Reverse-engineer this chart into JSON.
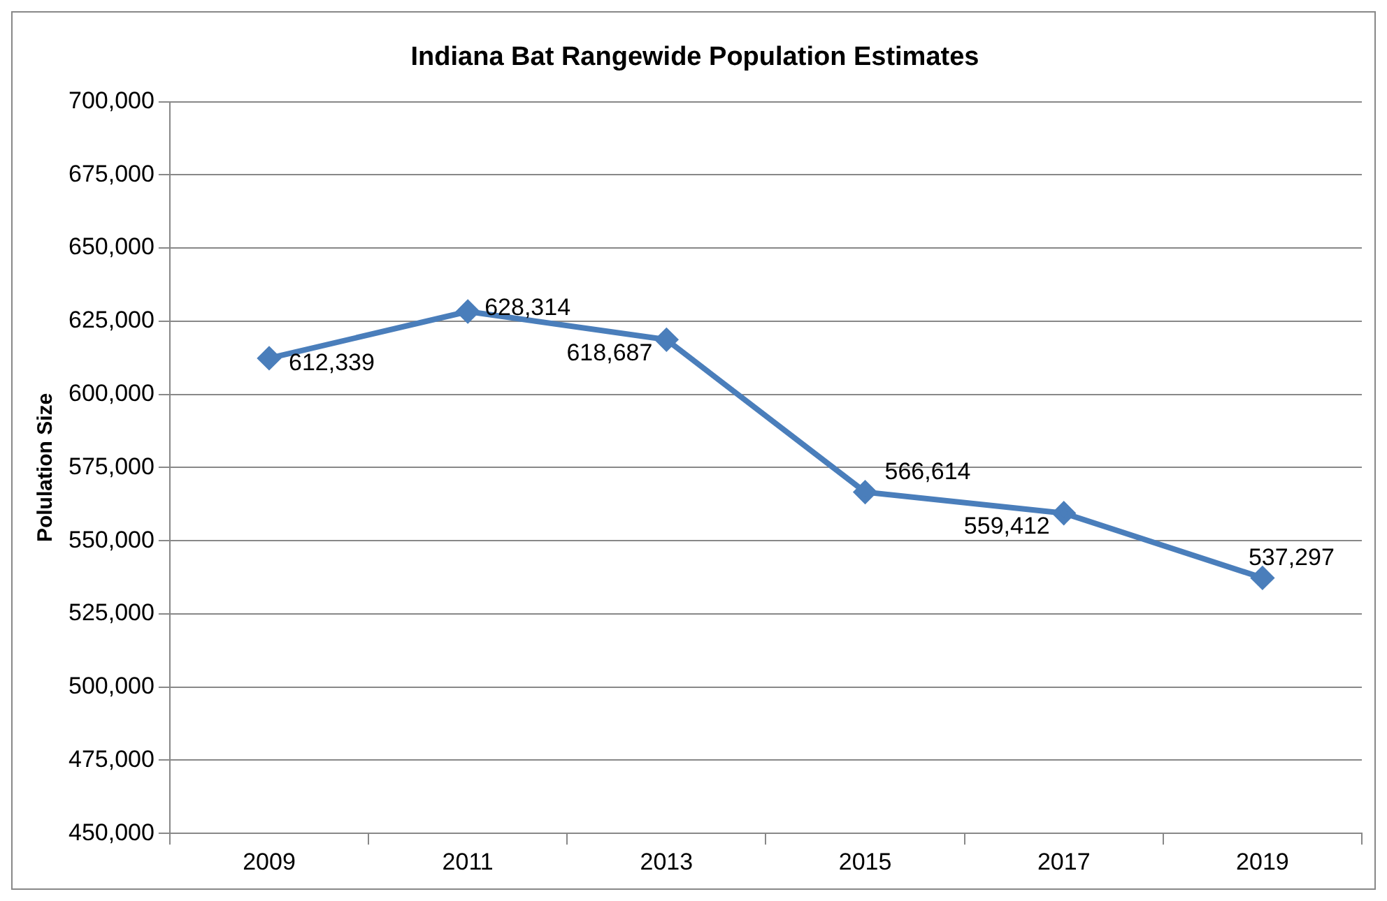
{
  "chart_data": {
    "type": "line",
    "title": "Indiana Bat Rangewide Population Estimates",
    "ylabel": "Polulation Size",
    "categories": [
      "2009",
      "2011",
      "2013",
      "2015",
      "2017",
      "2019"
    ],
    "series": [
      {
        "color": "#4a7ebb",
        "values": [
          612339,
          628314,
          618687,
          566614,
          559412,
          537297
        ]
      }
    ],
    "value_labels": [
      "612,339",
      "628,314",
      "618,687",
      "566,614",
      "559,412",
      "537,297"
    ],
    "ylim": [
      450000,
      700000
    ],
    "yticks": [
      {
        "value": 450000,
        "label": "450,000"
      },
      {
        "value": 475000,
        "label": "475,000"
      },
      {
        "value": 500000,
        "label": "500,000"
      },
      {
        "value": 525000,
        "label": "525,000"
      },
      {
        "value": 550000,
        "label": "550,000"
      },
      {
        "value": 575000,
        "label": "575,000"
      },
      {
        "value": 600000,
        "label": "600,000"
      },
      {
        "value": 625000,
        "label": "625,000"
      },
      {
        "value": 650000,
        "label": "650,000"
      },
      {
        "value": 675000,
        "label": "675,000"
      },
      {
        "value": 700000,
        "label": "700,000"
      }
    ],
    "grid": "y",
    "legend": false,
    "marker": "diamond",
    "line_style": "solid"
  }
}
